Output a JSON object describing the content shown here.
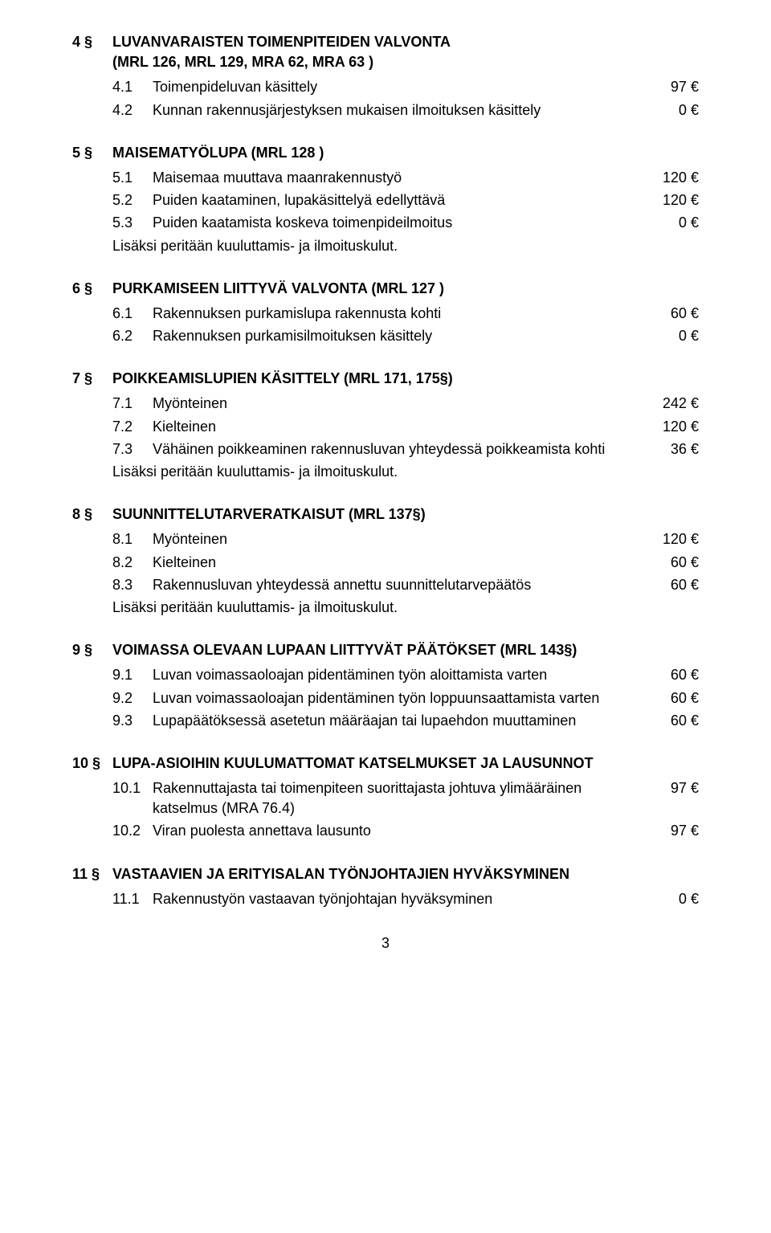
{
  "page_number": "3",
  "sections": [
    {
      "num": "4 §",
      "title": "LUVANVARAISTEN TOIMENPITEIDEN VALVONTA",
      "paren": "(MRL 126, MRL 129, MRA 62, MRA 63 )",
      "items": [
        {
          "num": "4.1",
          "label": "Toimenpideluvan käsittely",
          "value": "97 €"
        },
        {
          "num": "4.2",
          "label": "Kunnan rakennusjärjestyksen mukaisen ilmoituksen käsittely",
          "value": "0 €"
        }
      ],
      "notes": []
    },
    {
      "num": "5 §",
      "title": "MAISEMATYÖLUPA (MRL 128 )",
      "paren": "",
      "items": [
        {
          "num": "5.1",
          "label": "Maisemaa muuttava maanrakennustyö",
          "value": "120 €"
        },
        {
          "num": "5.2",
          "label": "Puiden kaataminen, lupakäsittelyä edellyttävä",
          "value": "120 €"
        },
        {
          "num": "5.3",
          "label": "Puiden kaatamista koskeva toimenpideilmoitus",
          "value": "0 €"
        }
      ],
      "notes": [
        "Lisäksi peritään kuuluttamis- ja ilmoituskulut."
      ]
    },
    {
      "num": "6 §",
      "title": "PURKAMISEEN LIITTYVÄ VALVONTA (MRL 127 )",
      "paren": "",
      "items": [
        {
          "num": "6.1",
          "label": "Rakennuksen purkamislupa rakennusta kohti",
          "value": "60 €"
        },
        {
          "num": "6.2",
          "label": "Rakennuksen purkamisilmoituksen käsittely",
          "value": "0 €"
        }
      ],
      "notes": []
    },
    {
      "num": "7 §",
      "title": "POIKKEAMISLUPIEN KÄSITTELY (MRL 171, 175§)",
      "paren": "",
      "items": [
        {
          "num": "7.1",
          "label": "Myönteinen",
          "value": "242 €"
        },
        {
          "num": "7.2",
          "label": "Kielteinen",
          "value": "120 €"
        },
        {
          "num": "7.3",
          "label": "Vähäinen poikkeaminen rakennusluvan yhteydessä poikkeamista kohti",
          "value": "36 €"
        }
      ],
      "notes": [
        "Lisäksi peritään kuuluttamis- ja ilmoituskulut."
      ]
    },
    {
      "num": "8 §",
      "title": "SUUNNITTELUTARVERATKAISUT (MRL 137§)",
      "paren": "",
      "items": [
        {
          "num": "8.1",
          "label": "Myönteinen",
          "value": "120 €"
        },
        {
          "num": "8.2",
          "label": "Kielteinen",
          "value": "60 €"
        },
        {
          "num": "8.3",
          "label": "Rakennusluvan yhteydessä annettu suunnittelutarvepäätös",
          "value": "60 €"
        }
      ],
      "notes": [
        "Lisäksi peritään kuuluttamis- ja ilmoituskulut."
      ]
    },
    {
      "num": "9 §",
      "title": "VOIMASSA OLEVAAN LUPAAN LIITTYVÄT PÄÄTÖKSET (MRL 143§)",
      "paren": "",
      "items": [
        {
          "num": "9.1",
          "label": "Luvan voimassaoloajan pidentäminen työn aloittamista varten",
          "value": "60 €"
        },
        {
          "num": "9.2",
          "label": "Luvan voimassaoloajan pidentäminen työn loppuunsaattamista varten",
          "value": "60 €"
        },
        {
          "num": "9.3",
          "label": "Lupapäätöksessä asetetun määräajan tai lupaehdon muuttaminen",
          "value": "60 €"
        }
      ],
      "notes": []
    },
    {
      "num": "10 §",
      "title": "LUPA-ASIOIHIN KUULUMATTOMAT KATSELMUKSET JA LAUSUNNOT",
      "paren": "",
      "items": [
        {
          "num": "10.1",
          "label": "Rakennuttajasta tai toimenpiteen suorittajasta johtuva ylimääräinen katselmus (MRA 76.4)",
          "value": "97 €"
        },
        {
          "num": "10.2",
          "label": "Viran puolesta annettava lausunto",
          "value": "97 €"
        }
      ],
      "notes": []
    },
    {
      "num": "11 §",
      "title": "VASTAAVIEN JA ERITYISALAN TYÖNJOHTAJIEN HYVÄKSYMINEN",
      "paren": "",
      "items": [
        {
          "num": "11.1",
          "label": "Rakennustyön vastaavan työnjohtajan hyväksyminen",
          "value": "0 €"
        }
      ],
      "notes": []
    }
  ]
}
